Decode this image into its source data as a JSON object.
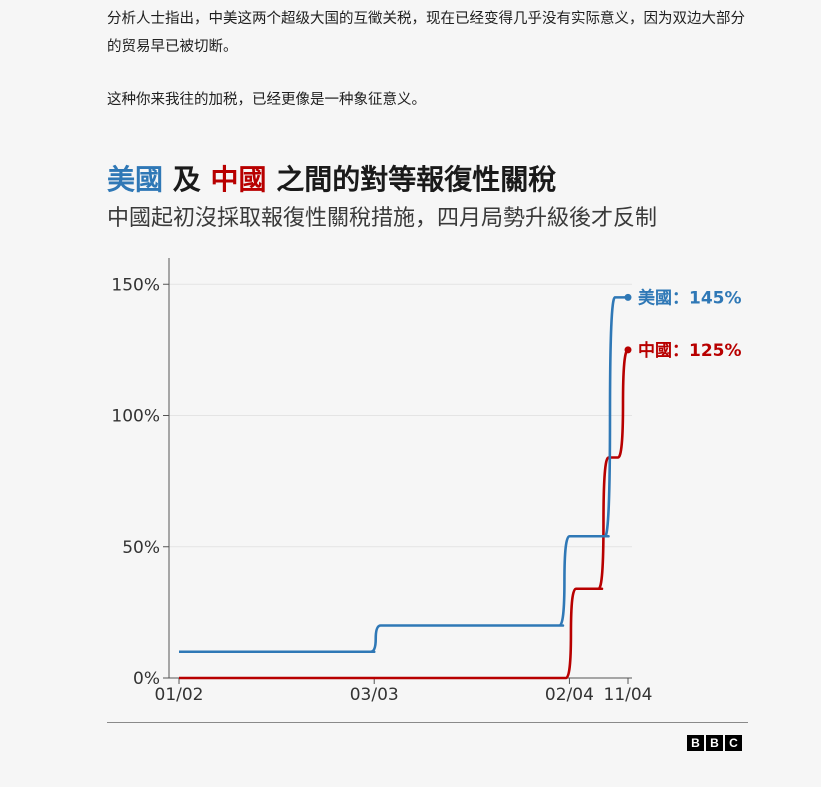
{
  "article": {
    "paragraph1": "分析人士指出，中美这两个超级大国的互徵关税，现在已经变得几乎没有实际意义，因为双边大部分的贸易早已被切断。",
    "paragraph2": "这种你来我往的加税，已经更像是一种象征意义。"
  },
  "chart_data": {
    "type": "line",
    "title_parts": {
      "us": "美國",
      "conj": " 及 ",
      "cn": "中國",
      "rest": " 之間的對等報復性關稅"
    },
    "subtitle": "中國起初沒採取報復性關稅措施，四月局勢升級後才反制",
    "xlabel": "",
    "ylabel": "",
    "x_ticks": [
      "01/02",
      "03/03",
      "02/04",
      "11/04"
    ],
    "y_ticks": [
      "0%",
      "50%",
      "100%",
      "150%"
    ],
    "y_tick_values": [
      0,
      50,
      100,
      150
    ],
    "ylim": [
      0,
      160
    ],
    "grid": true,
    "series": [
      {
        "name": "美國",
        "color": "#2f78b6",
        "end_label": "美國：145%",
        "points": [
          [
            "01/02",
            10
          ],
          [
            "03/03",
            10
          ],
          [
            "04/03",
            20
          ],
          [
            "01/04",
            20
          ],
          [
            "02/04",
            54
          ],
          [
            "08/04",
            54
          ],
          [
            "09/04",
            145
          ],
          [
            "11/04",
            145
          ]
        ]
      },
      {
        "name": "中國",
        "color": "#b80000",
        "end_label": "中國：125%",
        "points": [
          [
            "01/02",
            0
          ],
          [
            "01/04",
            0
          ],
          [
            "03/04",
            34
          ],
          [
            "07/04",
            34
          ],
          [
            "08/04",
            84
          ],
          [
            "09/04",
            84
          ],
          [
            "11/04",
            125
          ]
        ]
      }
    ]
  },
  "footer": {
    "logo_letters": [
      "B",
      "B",
      "C"
    ]
  }
}
